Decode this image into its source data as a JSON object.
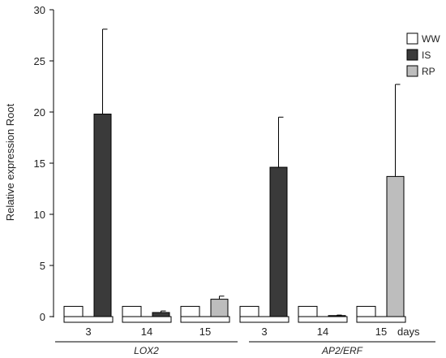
{
  "chart_data": {
    "type": "bar",
    "title": "",
    "ylabel": "Relative expression Root",
    "ylim": [
      0,
      30
    ],
    "yticks": [
      0,
      5,
      10,
      15,
      20,
      25,
      30
    ],
    "x_unit_label": "days",
    "groups": [
      {
        "gene": "LOX2",
        "days": [
          "3",
          "14",
          "15"
        ]
      },
      {
        "gene": "AP2/ERF",
        "days": [
          "3",
          "14",
          "15"
        ]
      }
    ],
    "legend": {
      "placement": "top-right",
      "entries": [
        "WW",
        "IS",
        "RP"
      ]
    },
    "colors": {
      "WW": "#ffffff",
      "IS": "#3a3a3a",
      "RP": "#bdbdbd",
      "axis": "#000000"
    },
    "bars": [
      {
        "gene": "LOX2",
        "day": "3",
        "treatment": "WW",
        "value": 1.0,
        "error": 0
      },
      {
        "gene": "LOX2",
        "day": "3",
        "treatment": "IS",
        "value": 19.8,
        "error": 8.3
      },
      {
        "gene": "LOX2",
        "day": "14",
        "treatment": "WW",
        "value": 1.0,
        "error": 0
      },
      {
        "gene": "LOX2",
        "day": "14",
        "treatment": "IS",
        "value": 0.4,
        "error": 0.15
      },
      {
        "gene": "LOX2",
        "day": "15",
        "treatment": "WW",
        "value": 1.0,
        "error": 0
      },
      {
        "gene": "LOX2",
        "day": "15",
        "treatment": "RP",
        "value": 1.7,
        "error": 0.3
      },
      {
        "gene": "AP2/ERF",
        "day": "3",
        "treatment": "WW",
        "value": 1.0,
        "error": 0
      },
      {
        "gene": "AP2/ERF",
        "day": "3",
        "treatment": "IS",
        "value": 14.6,
        "error": 4.9
      },
      {
        "gene": "AP2/ERF",
        "day": "14",
        "treatment": "WW",
        "value": 1.0,
        "error": 0
      },
      {
        "gene": "AP2/ERF",
        "day": "14",
        "treatment": "IS",
        "value": 0.1,
        "error": 0.05
      },
      {
        "gene": "AP2/ERF",
        "day": "15",
        "treatment": "WW",
        "value": 1.0,
        "error": 0
      },
      {
        "gene": "AP2/ERF",
        "day": "15",
        "treatment": "RP",
        "value": 13.7,
        "error": 9.0
      }
    ]
  }
}
